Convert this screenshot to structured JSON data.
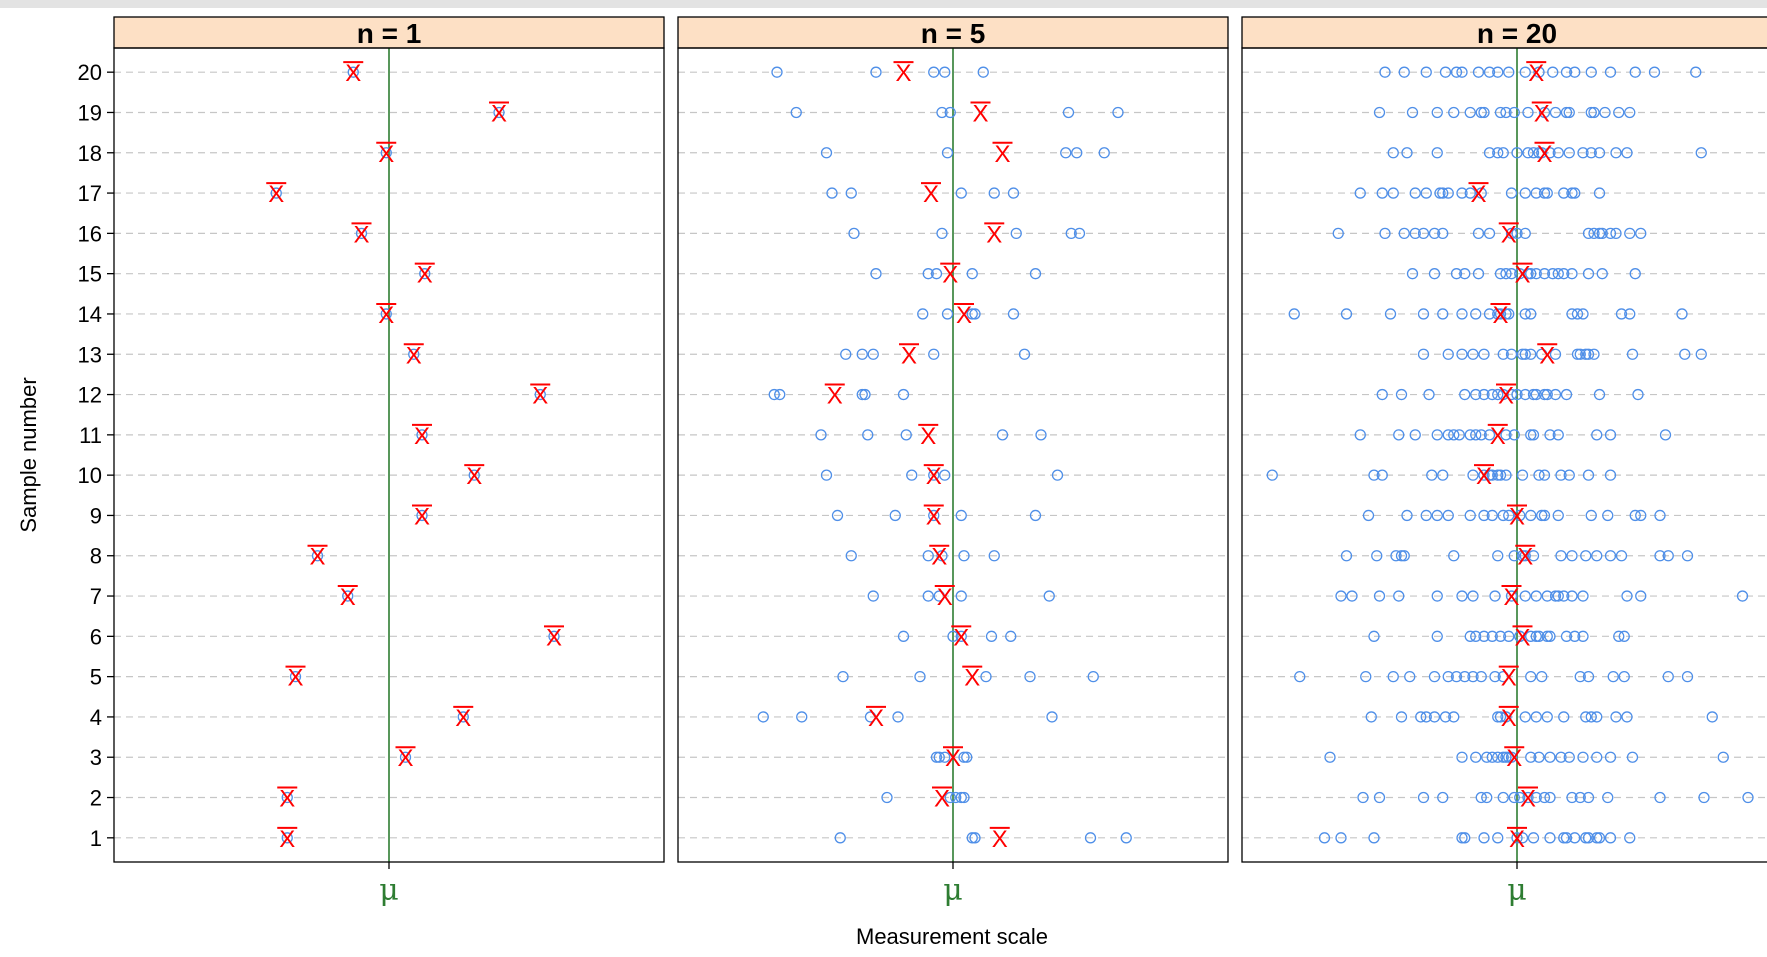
{
  "chart_data": {
    "type": "scatter",
    "ylabel": "Sample number",
    "xlabel": "Measurement scale",
    "x_tick_label": "μ",
    "x_range": [
      -1,
      1
    ],
    "y_range": [
      0.4,
      20.6
    ],
    "y_ticks": [
      "1",
      "2",
      "3",
      "4",
      "5",
      "6",
      "7",
      "8",
      "9",
      "10",
      "11",
      "12",
      "13",
      "14",
      "15",
      "16",
      "17",
      "18",
      "19",
      "20"
    ],
    "colors": {
      "observations": "#4f8fe8",
      "sample_mean": "#ff0000",
      "mu_line": "#2e7d32",
      "strip": "#fde0c5"
    },
    "panels": [
      {
        "strip": "n = 1",
        "means": [
          -0.37,
          -0.37,
          0.06,
          0.27,
          -0.34,
          0.6,
          -0.15,
          -0.26,
          0.12,
          0.31,
          0.12,
          0.55,
          0.09,
          -0.01,
          0.13,
          -0.1,
          -0.41,
          -0.01,
          0.4,
          -0.13
        ],
        "observations": [
          [
            -0.37
          ],
          [
            -0.37
          ],
          [
            0.06
          ],
          [
            0.27
          ],
          [
            -0.34
          ],
          [
            0.6
          ],
          [
            -0.15
          ],
          [
            -0.26
          ],
          [
            0.12
          ],
          [
            0.31
          ],
          [
            0.12
          ],
          [
            0.55
          ],
          [
            0.09
          ],
          [
            -0.01
          ],
          [
            0.13
          ],
          [
            -0.1
          ],
          [
            -0.41
          ],
          [
            -0.01
          ],
          [
            0.4
          ],
          [
            -0.13
          ]
        ]
      },
      {
        "strip": "n = 5",
        "means": [
          0.17,
          -0.04,
          0,
          -0.28,
          0.07,
          0.03,
          -0.03,
          -0.05,
          -0.07,
          -0.07,
          -0.09,
          -0.43,
          -0.16,
          0.04,
          -0.01,
          0.15,
          -0.08,
          0.18,
          0.1,
          -0.18
        ],
        "observations": [
          [
            -0.41,
            0.07,
            0.5,
            0.63,
            0.08
          ],
          [
            -0.24,
            0.01,
            0.04,
            0.03,
            -0.01
          ],
          [
            -0.06,
            -0.05,
            0.05,
            0.04,
            -0.03
          ],
          [
            -0.69,
            -0.55,
            -0.3,
            -0.2,
            0.36
          ],
          [
            -0.4,
            -0.12,
            0.12,
            0.28,
            0.51
          ],
          [
            -0.18,
            0.0,
            0.14,
            0.21,
            0.03
          ],
          [
            -0.29,
            -0.09,
            -0.05,
            0.03,
            0.35
          ],
          [
            -0.37,
            -0.09,
            0.04,
            0.15,
            -0.04
          ],
          [
            -0.42,
            -0.21,
            0.03,
            0.3,
            -0.07
          ],
          [
            -0.46,
            -0.15,
            -0.07,
            -0.03,
            0.38
          ],
          [
            -0.48,
            -0.31,
            -0.17,
            0.18,
            0.32
          ],
          [
            -0.65,
            -0.63,
            -0.32,
            -0.33,
            -0.18
          ],
          [
            -0.39,
            -0.33,
            -0.29,
            -0.07,
            0.26
          ],
          [
            -0.11,
            -0.02,
            0.08,
            0.22,
            0.07
          ],
          [
            -0.28,
            -0.09,
            -0.06,
            0.07,
            0.3
          ],
          [
            -0.36,
            -0.04,
            0.23,
            0.46,
            0.43
          ],
          [
            -0.44,
            -0.37,
            0.03,
            0.15,
            0.22
          ],
          [
            -0.46,
            -0.02,
            0.41,
            0.45,
            0.55
          ],
          [
            -0.57,
            -0.04,
            0.42,
            0.6,
            -0.01
          ],
          [
            -0.64,
            -0.28,
            -0.07,
            -0.03,
            0.11
          ]
        ]
      },
      {
        "strip": "n = 20",
        "means": [
          0.0,
          0.04,
          -0.01,
          -0.03,
          -0.03,
          0.02,
          -0.02,
          0.03,
          0.0,
          -0.12,
          -0.07,
          -0.04,
          0.11,
          -0.06,
          0.02,
          -0.03,
          -0.14,
          0.1,
          0.09,
          0.07
        ],
        "observations": [
          [
            -0.7,
            -0.64,
            -0.52,
            -0.19,
            -0.12,
            -0.07,
            0.0,
            0.06,
            0.12,
            0.17,
            0.21,
            0.25,
            0.29,
            0.34,
            0.41,
            0.02,
            -0.2,
            0.26,
            0.18,
            0.3
          ],
          [
            -0.56,
            -0.5,
            -0.34,
            -0.27,
            -0.13,
            -0.11,
            -0.05,
            -0.01,
            0.04,
            0.07,
            0.1,
            0.12,
            0.2,
            0.23,
            0.33,
            0.52,
            0.68,
            0.84,
            0.01,
            0.26
          ],
          [
            -0.68,
            -0.2,
            -0.15,
            -0.11,
            -0.07,
            -0.05,
            -0.04,
            -0.03,
            -0.02,
            0.05,
            0.08,
            0.12,
            0.16,
            0.19,
            0.24,
            0.29,
            0.34,
            0.42,
            0.75,
            -0.09
          ],
          [
            -0.53,
            -0.42,
            -0.35,
            -0.3,
            -0.26,
            -0.23,
            -0.06,
            -0.04,
            0.07,
            0.11,
            0.17,
            0.25,
            0.29,
            0.36,
            0.4,
            0.71,
            -0.33,
            -0.07,
            0.27,
            0.03
          ],
          [
            -0.79,
            -0.55,
            -0.45,
            -0.39,
            -0.3,
            -0.25,
            -0.22,
            -0.19,
            -0.16,
            -0.13,
            -0.08,
            -0.05,
            0.05,
            0.09,
            0.23,
            0.26,
            0.35,
            0.39,
            0.55,
            0.62
          ],
          [
            -0.52,
            -0.29,
            -0.17,
            -0.12,
            -0.09,
            -0.06,
            -0.03,
            0.01,
            0.05,
            0.08,
            0.12,
            0.18,
            0.24,
            0.37,
            0.39,
            -0.15,
            0.07,
            0.21,
            0.11,
            0.01
          ],
          [
            -0.64,
            -0.6,
            -0.5,
            -0.43,
            -0.29,
            -0.2,
            -0.16,
            -0.08,
            0.03,
            0.07,
            0.11,
            0.14,
            0.17,
            0.2,
            0.24,
            0.4,
            0.45,
            0.82,
            -0.02,
            0.15
          ],
          [
            -0.62,
            -0.51,
            -0.44,
            -0.41,
            -0.23,
            -0.07,
            -0.01,
            0.03,
            0.06,
            0.16,
            0.2,
            0.25,
            0.29,
            0.34,
            0.52,
            0.55,
            0.62,
            0.38,
            -0.42,
            0.02
          ],
          [
            -0.54,
            -0.4,
            -0.33,
            -0.29,
            -0.25,
            -0.17,
            -0.12,
            -0.09,
            -0.05,
            0.05,
            0.09,
            0.15,
            0.27,
            0.33,
            0.43,
            0.45,
            0.52,
            -0.03,
            0.01,
            0.1
          ],
          [
            -0.89,
            -0.52,
            -0.49,
            -0.31,
            -0.27,
            -0.12,
            -0.1,
            -0.09,
            -0.07,
            -0.04,
            0.08,
            0.16,
            0.19,
            0.26,
            0.34,
            -0.16,
            -0.1,
            0.02,
            -0.06,
            0.1
          ],
          [
            -0.57,
            -0.43,
            -0.37,
            -0.29,
            -0.25,
            -0.21,
            -0.17,
            -0.13,
            -0.1,
            -0.04,
            -0.01,
            0.06,
            0.12,
            0.15,
            0.29,
            0.34,
            0.54,
            -0.23,
            -0.15,
            0.05
          ],
          [
            -0.49,
            -0.42,
            -0.32,
            -0.19,
            -0.15,
            -0.12,
            -0.09,
            -0.05,
            0.0,
            0.03,
            0.07,
            0.1,
            0.14,
            0.18,
            0.3,
            0.44,
            -0.07,
            0.06,
            -0.02,
            0.11
          ],
          [
            -0.34,
            -0.25,
            -0.2,
            -0.12,
            -0.05,
            -0.02,
            0.05,
            0.09,
            0.14,
            0.23,
            0.25,
            0.28,
            0.42,
            0.61,
            0.67,
            -0.16,
            0.02,
            0.22,
            0.26,
            0.03
          ],
          [
            -0.81,
            -0.62,
            -0.46,
            -0.34,
            -0.27,
            -0.2,
            -0.15,
            -0.1,
            -0.07,
            -0.04,
            0.03,
            0.2,
            0.24,
            0.38,
            0.41,
            0.6,
            -0.06,
            -0.03,
            0.22,
            0.05
          ],
          [
            -0.38,
            -0.3,
            -0.22,
            -0.19,
            -0.14,
            -0.06,
            -0.02,
            0.01,
            0.05,
            0.07,
            0.13,
            0.17,
            0.2,
            0.26,
            0.31,
            0.43,
            0.04,
            0.1,
            -0.04,
            0.15
          ],
          [
            -0.65,
            -0.48,
            -0.41,
            -0.37,
            -0.3,
            -0.27,
            -0.14,
            -0.1,
            0.0,
            0.03,
            0.26,
            0.31,
            0.34,
            0.41,
            0.45,
            -0.34,
            0.28,
            0.3,
            0.36,
            -0.02
          ],
          [
            -0.57,
            -0.49,
            -0.45,
            -0.37,
            -0.33,
            -0.28,
            -0.25,
            -0.2,
            -0.17,
            -0.13,
            -0.02,
            0.03,
            0.07,
            0.1,
            0.17,
            0.21,
            0.3,
            -0.27,
            0.11,
            0.2
          ],
          [
            -0.45,
            -0.4,
            -0.29,
            -0.1,
            -0.07,
            0.0,
            0.06,
            0.09,
            0.12,
            0.15,
            0.19,
            0.24,
            0.3,
            0.36,
            0.4,
            0.67,
            0.27,
            -0.05,
            0.04,
            0.08
          ],
          [
            -0.5,
            -0.38,
            -0.29,
            -0.23,
            -0.17,
            -0.12,
            -0.06,
            -0.01,
            0.04,
            0.1,
            0.14,
            0.19,
            0.27,
            0.32,
            0.37,
            0.41,
            -0.13,
            -0.04,
            0.28,
            0.18
          ],
          [
            -0.48,
            -0.41,
            -0.33,
            -0.26,
            -0.2,
            -0.14,
            -0.07,
            -0.03,
            0.03,
            0.08,
            0.13,
            0.18,
            0.27,
            0.34,
            0.43,
            0.5,
            0.65,
            -0.22,
            -0.1,
            0.21
          ]
        ]
      }
    ]
  }
}
